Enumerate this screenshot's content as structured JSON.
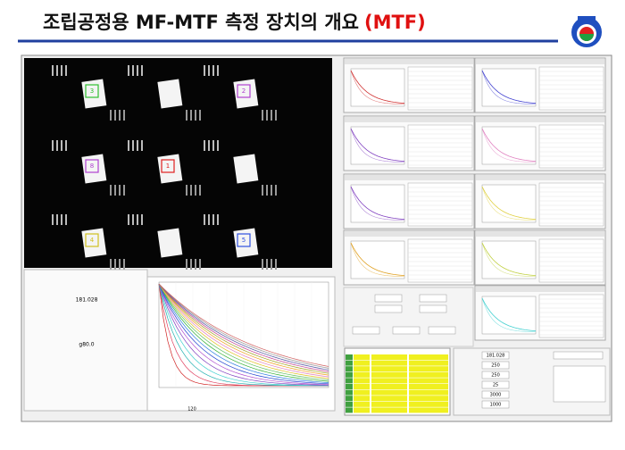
{
  "header": {
    "title": "조립공정용 MF-MTF 측정 장치의 개요",
    "highlight": "(MTF)"
  },
  "image_panel": {
    "target_labels": [
      "3",
      "2",
      "8",
      "1",
      "4",
      "5"
    ]
  },
  "left_form": {
    "values": [
      "181.028",
      "g80.0"
    ]
  },
  "settings": {
    "values": [
      "181.028",
      "250",
      "250",
      "25",
      "3000",
      "1000"
    ]
  },
  "max_frequency": [
    "120",
    "120"
  ]
}
